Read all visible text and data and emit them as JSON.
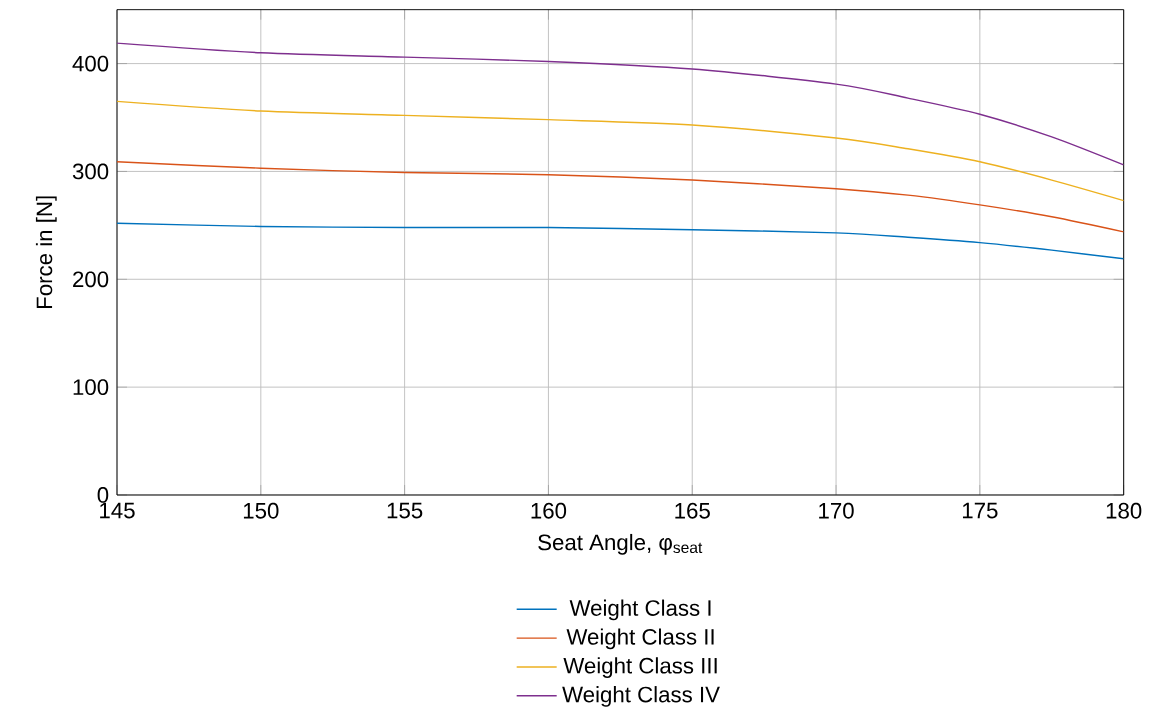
{
  "chart_data": {
    "type": "line",
    "xlabel": "Seat Angle, φ$_{seat}$",
    "ylabel": "Force in [N]",
    "x": [
      145,
      150,
      155,
      160,
      165,
      170,
      172.5,
      175,
      177.5,
      180
    ],
    "series": [
      {
        "name": "Weight Class I",
        "color": "#0072bd",
        "values": [
          252,
          249,
          248,
          248,
          246,
          243,
          239,
          234,
          227,
          219
        ]
      },
      {
        "name": "Weight Class II",
        "color": "#d95319",
        "values": [
          309,
          303,
          299,
          297,
          292,
          284,
          278,
          269,
          258,
          244
        ]
      },
      {
        "name": "Weight Class III",
        "color": "#edb120",
        "values": [
          365,
          356,
          352,
          348,
          343,
          331,
          321,
          309,
          292,
          273
        ]
      },
      {
        "name": "Weight Class IV",
        "color": "#7e2f8e",
        "values": [
          419,
          410,
          406,
          402,
          395,
          381,
          368,
          353,
          332,
          306
        ]
      }
    ],
    "xlim": [
      145,
      180
    ],
    "ylim": [
      0,
      450
    ],
    "xticks": [
      145,
      150,
      155,
      160,
      165,
      170,
      175,
      180
    ],
    "yticks": [
      0,
      100,
      200,
      300,
      400
    ],
    "grid": true,
    "legend": "bottom",
    "marker": "none",
    "line_style": "solid"
  }
}
